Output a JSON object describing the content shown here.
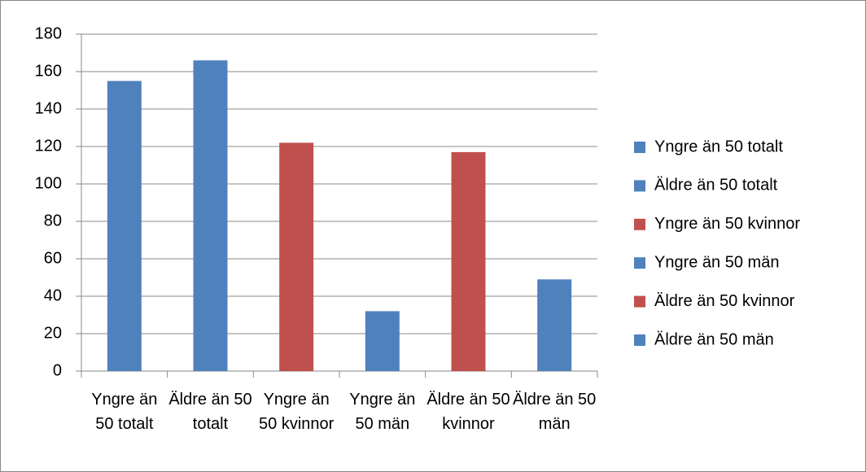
{
  "chart_data": {
    "type": "bar",
    "categories": [
      "Yngre än 50 totalt",
      "Äldre än 50 totalt",
      "Yngre än 50 kvinnor",
      "Yngre än 50 män",
      "Äldre än 50 kvinnor",
      "Äldre än 50 män"
    ],
    "values": [
      155,
      166,
      122,
      32,
      117,
      49
    ],
    "colors": [
      "#4f81bd",
      "#4f81bd",
      "#c0504d",
      "#4f81bd",
      "#c0504d",
      "#4f81bd"
    ],
    "ylim": [
      0,
      180
    ],
    "yticks": [
      0,
      20,
      40,
      60,
      80,
      100,
      120,
      140,
      160,
      180
    ],
    "grid": true,
    "legend": "right"
  }
}
